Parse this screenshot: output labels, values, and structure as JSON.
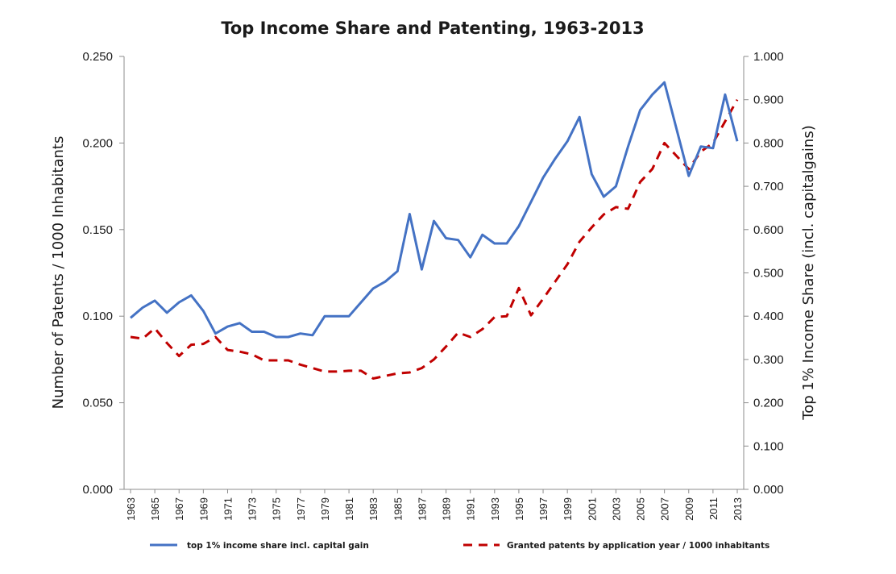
{
  "chart_data": {
    "type": "line",
    "title": "Top Income Share and Patenting, 1963-2013",
    "xlabel": "",
    "ylabel": "Number of Patents / 1000 Inhabitants",
    "y2label": "Top 1% Income Share (incl. capitalgains)",
    "x": [
      1963,
      1964,
      1965,
      1966,
      1967,
      1968,
      1969,
      1970,
      1971,
      1972,
      1973,
      1974,
      1975,
      1976,
      1977,
      1978,
      1979,
      1980,
      1981,
      1982,
      1983,
      1984,
      1985,
      1986,
      1987,
      1988,
      1989,
      1990,
      1991,
      1992,
      1993,
      1994,
      1995,
      1996,
      1997,
      1998,
      1999,
      2000,
      2001,
      2002,
      2003,
      2004,
      2005,
      2006,
      2007,
      2008,
      2009,
      2010,
      2011,
      2012,
      2013
    ],
    "x_tick_labels": [
      "1963",
      "1965",
      "1967",
      "1969",
      "1971",
      "1973",
      "1975",
      "1977",
      "1979",
      "1981",
      "1983",
      "1985",
      "1987",
      "1989",
      "1991",
      "1993",
      "1995",
      "1997",
      "1999",
      "2001",
      "2003",
      "2005",
      "2007",
      "2009",
      "2011",
      "2013"
    ],
    "ylim": [
      0,
      0.25
    ],
    "y_tick_labels": [
      "0.000",
      "0.050",
      "0.100",
      "0.150",
      "0.200",
      "0.250"
    ],
    "y2lim": [
      0,
      1.0
    ],
    "y2_tick_labels": [
      "0.000",
      "0.100",
      "0.200",
      "0.300",
      "0.400",
      "0.500",
      "0.600",
      "0.700",
      "0.800",
      "0.900",
      "1.000"
    ],
    "grid": false,
    "legend_position": "bottom",
    "series": [
      {
        "name": "top 1% income share incl. capital gain",
        "axis": "left",
        "style": "solid",
        "color": "#4472c4",
        "values": [
          0.099,
          0.105,
          0.109,
          0.102,
          0.108,
          0.112,
          0.103,
          0.09,
          0.094,
          0.096,
          0.091,
          0.091,
          0.088,
          0.088,
          0.09,
          0.089,
          0.1,
          0.1,
          0.1,
          0.108,
          0.116,
          0.12,
          0.126,
          0.159,
          0.127,
          0.155,
          0.145,
          0.144,
          0.134,
          0.147,
          0.142,
          0.142,
          0.152,
          0.166,
          0.18,
          0.191,
          0.201,
          0.215,
          0.182,
          0.169,
          0.175,
          0.198,
          0.219,
          0.228,
          0.235,
          0.208,
          0.181,
          0.198,
          0.197,
          0.228,
          0.201
        ]
      },
      {
        "name": "Granted patents by application year / 1000 inhabitants",
        "axis": "right",
        "style": "dashed",
        "color": "#c00000",
        "values": [
          0.352,
          0.348,
          0.372,
          0.338,
          0.308,
          0.334,
          0.336,
          0.352,
          0.322,
          0.318,
          0.312,
          0.298,
          0.298,
          0.298,
          0.288,
          0.28,
          0.272,
          0.272,
          0.274,
          0.274,
          0.256,
          0.262,
          0.268,
          0.27,
          0.28,
          0.3,
          0.33,
          0.362,
          0.352,
          0.37,
          0.398,
          0.4,
          0.465,
          0.402,
          0.44,
          0.48,
          0.52,
          0.572,
          0.605,
          0.635,
          0.652,
          0.648,
          0.71,
          0.74,
          0.8,
          0.77,
          0.74,
          0.78,
          0.8,
          0.85,
          0.9
        ]
      }
    ]
  }
}
